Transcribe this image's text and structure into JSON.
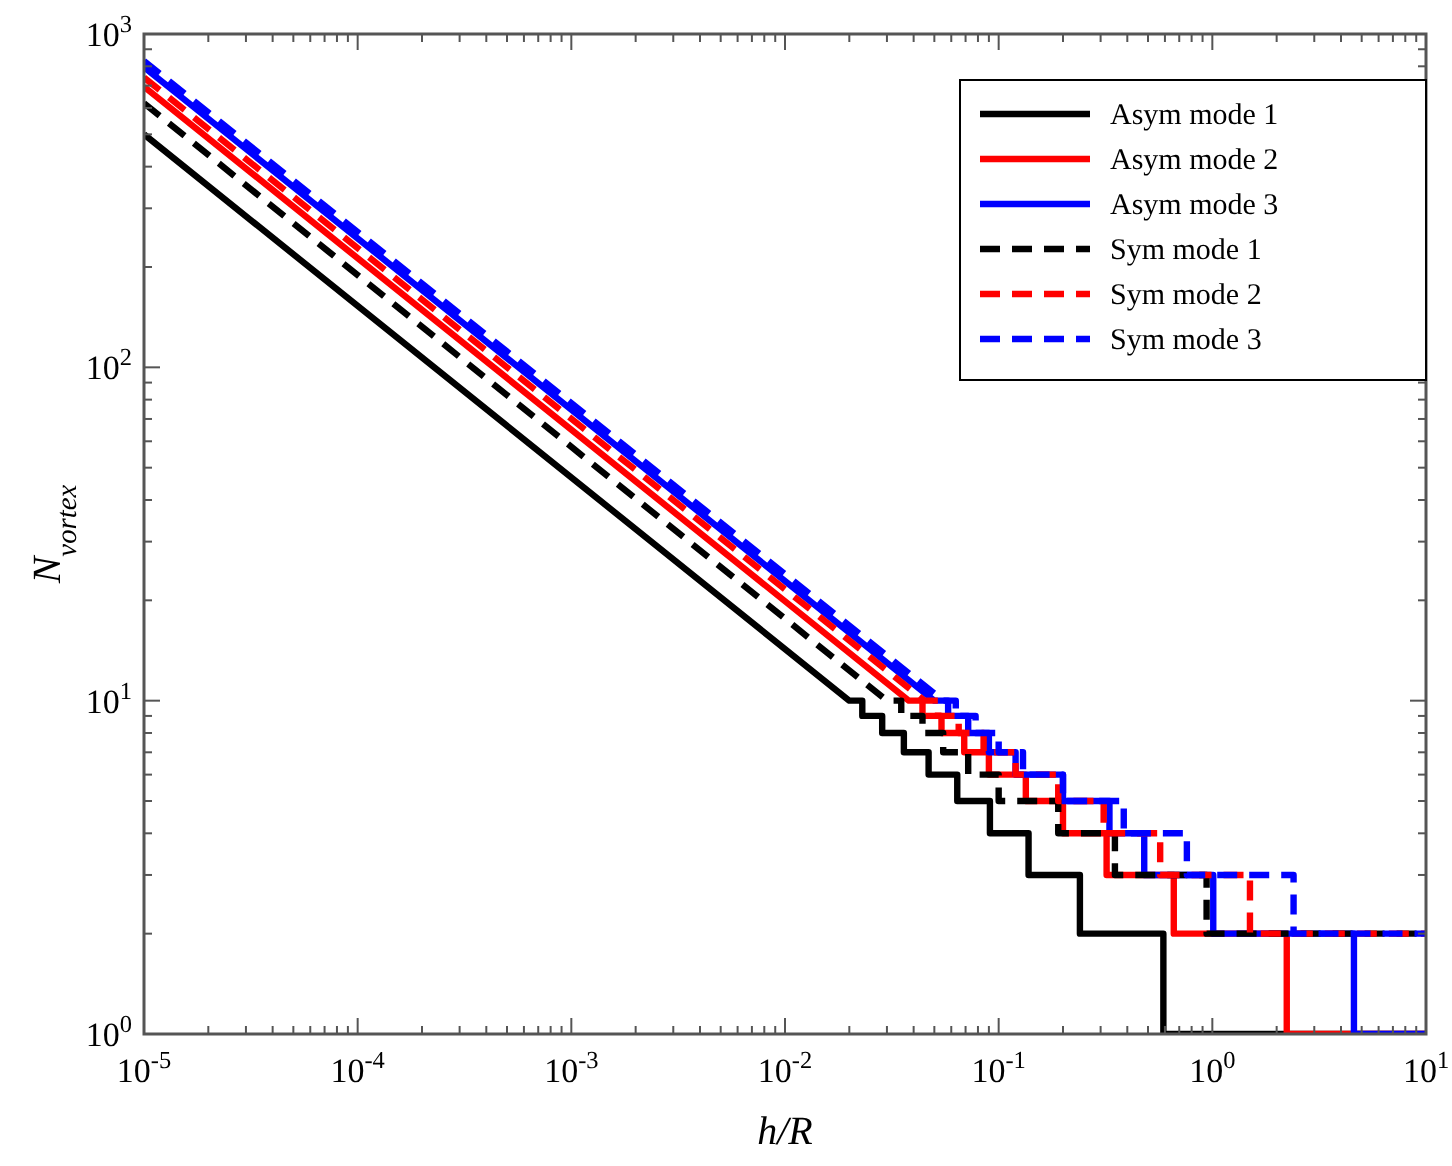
{
  "chart_data": {
    "type": "line",
    "xlabel": "h/R",
    "ylabel": "N$_{vortex}$",
    "log": "xy",
    "grid": false,
    "legend": "top right",
    "xlim": [
      1e-05,
      10
    ],
    "ylim": [
      1,
      1000
    ],
    "xticks": [
      {
        "value": 1e-05,
        "label": "10$^{-5}$"
      },
      {
        "value": 2e-05,
        "label": null
      },
      {
        "value": 3e-05,
        "label": null
      },
      {
        "value": 4e-05,
        "label": null
      },
      {
        "value": 5e-05,
        "label": null
      },
      {
        "value": 6e-05,
        "label": null
      },
      {
        "value": 7e-05,
        "label": null
      },
      {
        "value": 8e-05,
        "label": null
      },
      {
        "value": 9e-05,
        "label": null
      },
      {
        "value": 0.0001,
        "label": "10$^{-4}$"
      },
      {
        "value": 0.0002,
        "label": null
      },
      {
        "value": 0.0003,
        "label": null
      },
      {
        "value": 0.0004,
        "label": null
      },
      {
        "value": 0.0005,
        "label": null
      },
      {
        "value": 0.0006,
        "label": null
      },
      {
        "value": 0.0007,
        "label": null
      },
      {
        "value": 0.0008,
        "label": null
      },
      {
        "value": 0.0009,
        "label": null
      },
      {
        "value": 0.001,
        "label": "10$^{-3}$"
      },
      {
        "value": 0.002,
        "label": null
      },
      {
        "value": 0.003,
        "label": null
      },
      {
        "value": 0.004,
        "label": null
      },
      {
        "value": 0.005,
        "label": null
      },
      {
        "value": 0.006,
        "label": null
      },
      {
        "value": 0.007,
        "label": null
      },
      {
        "value": 0.008,
        "label": null
      },
      {
        "value": 0.009,
        "label": null
      },
      {
        "value": 0.01,
        "label": "10$^{-2}$"
      },
      {
        "value": 0.02,
        "label": null
      },
      {
        "value": 0.03,
        "label": null
      },
      {
        "value": 0.04,
        "label": null
      },
      {
        "value": 0.05,
        "label": null
      },
      {
        "value": 0.06,
        "label": null
      },
      {
        "value": 0.07,
        "label": null
      },
      {
        "value": 0.08,
        "label": null
      },
      {
        "value": 0.09,
        "label": null
      },
      {
        "value": 0.1,
        "label": "10$^{-1}$"
      },
      {
        "value": 0.2,
        "label": null
      },
      {
        "value": 0.3,
        "label": null
      },
      {
        "value": 0.4,
        "label": null
      },
      {
        "value": 0.5,
        "label": null
      },
      {
        "value": 0.6,
        "label": null
      },
      {
        "value": 0.7,
        "label": null
      },
      {
        "value": 0.8,
        "label": null
      },
      {
        "value": 0.9,
        "label": null
      },
      {
        "value": 1,
        "label": "10$^{0}$"
      },
      {
        "value": 2,
        "label": null
      },
      {
        "value": 3,
        "label": null
      },
      {
        "value": 4,
        "label": null
      },
      {
        "value": 5,
        "label": null
      },
      {
        "value": 6,
        "label": null
      },
      {
        "value": 7,
        "label": null
      },
      {
        "value": 8,
        "label": null
      },
      {
        "value": 9,
        "label": null
      },
      {
        "value": 10,
        "label": "10$^{1}$"
      }
    ],
    "yticks": [
      {
        "value": 1,
        "label": "10$^{0}$"
      },
      {
        "value": 2,
        "label": null
      },
      {
        "value": 3,
        "label": null
      },
      {
        "value": 4,
        "label": null
      },
      {
        "value": 5,
        "label": null
      },
      {
        "value": 6,
        "label": null
      },
      {
        "value": 7,
        "label": null
      },
      {
        "value": 8,
        "label": null
      },
      {
        "value": 9,
        "label": null
      },
      {
        "value": 10,
        "label": "10$^{1}$"
      },
      {
        "value": 20,
        "label": null
      },
      {
        "value": 30,
        "label": null
      },
      {
        "value": 40,
        "label": null
      },
      {
        "value": 50,
        "label": null
      },
      {
        "value": 60,
        "label": null
      },
      {
        "value": 70,
        "label": null
      },
      {
        "value": 80,
        "label": null
      },
      {
        "value": 90,
        "label": null
      },
      {
        "value": 100,
        "label": "10$^{2}$"
      },
      {
        "value": 200,
        "label": null
      },
      {
        "value": 300,
        "label": null
      },
      {
        "value": 400,
        "label": null
      },
      {
        "value": 500,
        "label": null
      },
      {
        "value": 600,
        "label": null
      },
      {
        "value": 700,
        "label": null
      },
      {
        "value": 800,
        "label": null
      },
      {
        "value": 900,
        "label": null
      },
      {
        "value": 1000,
        "label": "10$^{3}$"
      }
    ],
    "series": [
      {
        "name": "Asym mode 1",
        "color": "#000000",
        "line_style": "solid",
        "x": [
          1e-05,
          0.02,
          0.023,
          0.023,
          0.0285,
          0.0285,
          0.036,
          0.036,
          0.047,
          0.047,
          0.064,
          0.064,
          0.091,
          0.091,
          0.138,
          0.138,
          0.24,
          0.24,
          0.59,
          0.59,
          10
        ],
        "values": [
          500,
          10,
          10,
          9,
          9,
          8,
          8,
          7,
          7,
          6,
          6,
          5,
          5,
          4,
          4,
          3,
          3,
          2,
          2,
          1,
          1
        ]
      },
      {
        "name": "Asym mode 2",
        "color": "#ff0000",
        "line_style": "solid",
        "x": [
          1e-05,
          0.038,
          0.044,
          0.044,
          0.054,
          0.054,
          0.069,
          0.069,
          0.09,
          0.09,
          0.134,
          0.134,
          0.2,
          0.2,
          0.32,
          0.32,
          0.66,
          0.66,
          2.23,
          2.23,
          10
        ],
        "values": [
          695,
          10,
          10,
          9,
          9,
          8,
          8,
          7,
          7,
          6,
          6,
          5,
          5,
          4,
          4,
          3,
          3,
          2,
          2,
          1,
          1
        ]
      },
      {
        "name": "Asym mode 3",
        "color": "#0000ff",
        "line_style": "solid",
        "x": [
          1e-05,
          0.05,
          0.058,
          0.058,
          0.072,
          0.072,
          0.09,
          0.09,
          0.12,
          0.12,
          0.2,
          0.2,
          0.33,
          0.33,
          0.48,
          0.48,
          1.01,
          1.01,
          4.6,
          4.6,
          10
        ],
        "values": [
          795,
          10,
          10,
          9,
          9,
          8,
          8,
          7,
          7,
          6,
          6,
          5,
          5,
          4,
          4,
          3,
          3,
          2,
          2,
          1,
          1
        ]
      },
      {
        "name": "Sym mode 1",
        "color": "#000000",
        "line_style": "dashed",
        "x": [
          1e-05,
          0.03,
          0.035,
          0.035,
          0.044,
          0.044,
          0.055,
          0.055,
          0.072,
          0.072,
          0.1,
          0.1,
          0.19,
          0.19,
          0.35,
          0.35,
          0.94,
          0.94,
          10
        ],
        "values": [
          620,
          10,
          10,
          9,
          9,
          8,
          8,
          7,
          7,
          6,
          6,
          5,
          5,
          4,
          4,
          3,
          3,
          2,
          2
        ]
      },
      {
        "name": "Sym mode 2",
        "color": "#ff0000",
        "line_style": "dashed",
        "x": [
          1e-05,
          0.045,
          0.052,
          0.052,
          0.065,
          0.065,
          0.085,
          0.085,
          0.12,
          0.12,
          0.19,
          0.19,
          0.31,
          0.31,
          0.57,
          0.57,
          1.5,
          1.5,
          10
        ],
        "values": [
          740,
          10,
          10,
          9,
          9,
          8,
          8,
          7,
          7,
          6,
          6,
          5,
          5,
          4,
          4,
          3,
          3,
          2,
          2
        ]
      },
      {
        "name": "Sym mode 3",
        "color": "#0000ff",
        "line_style": "dashed",
        "x": [
          1e-05,
          0.055,
          0.063,
          0.063,
          0.078,
          0.078,
          0.1,
          0.1,
          0.13,
          0.13,
          0.2,
          0.2,
          0.385,
          0.385,
          0.76,
          0.76,
          2.4,
          2.4,
          10
        ],
        "values": [
          830,
          10,
          10,
          9,
          9,
          8,
          8,
          7,
          7,
          6,
          6,
          5,
          5,
          4,
          4,
          3,
          3,
          2,
          2
        ]
      }
    ]
  }
}
